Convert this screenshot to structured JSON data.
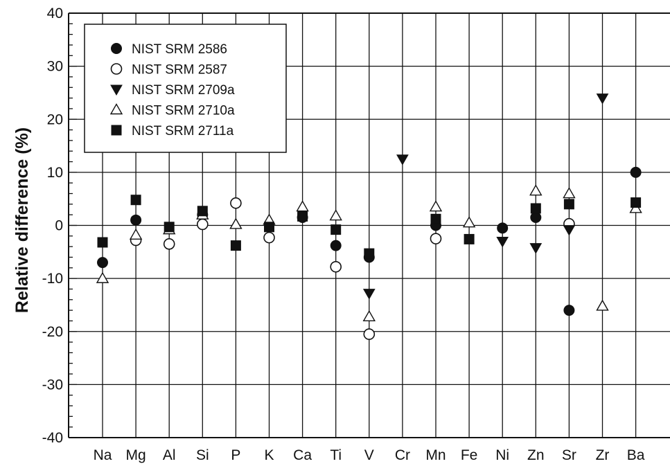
{
  "chart_data": {
    "type": "scatter",
    "title": "",
    "xlabel": "",
    "ylabel": "Relative difference (%)",
    "ylim": [
      -40,
      40
    ],
    "yticks": [
      -40,
      -30,
      -20,
      -10,
      0,
      10,
      20,
      30,
      40
    ],
    "ytick_labels": [
      "-40",
      "-30",
      "-20",
      "-10",
      "0",
      "10",
      "20",
      "30",
      "40"
    ],
    "categories": [
      "Na",
      "Mg",
      "Al",
      "Si",
      "P",
      "K",
      "Ca",
      "Ti",
      "V",
      "Cr",
      "Mn",
      "Fe",
      "Ni",
      "Zn",
      "Sr",
      "Zr",
      "Ba"
    ],
    "grid": true,
    "legend_position": "top-left",
    "series": [
      {
        "name": "NIST SRM 2586",
        "marker": "filled-circle",
        "values": [
          -7,
          1,
          null,
          2,
          null,
          null,
          1.5,
          -3.8,
          -6,
          null,
          0,
          null,
          -0.5,
          1.5,
          -16,
          null,
          10
        ]
      },
      {
        "name": "NIST SRM 2587",
        "marker": "open-circle",
        "values": [
          null,
          -2.8,
          -3.5,
          0.2,
          4.2,
          -2.3,
          null,
          -7.8,
          -20.5,
          null,
          -2.5,
          null,
          null,
          null,
          0.3,
          null,
          null
        ]
      },
      {
        "name": "NIST SRM 2709a",
        "marker": "filled-triangle-down",
        "values": [
          null,
          null,
          null,
          null,
          null,
          null,
          null,
          null,
          -12.8,
          12.5,
          null,
          null,
          -3,
          -4.2,
          -0.8,
          24,
          null
        ]
      },
      {
        "name": "NIST SRM 2710a",
        "marker": "open-triangle-up",
        "values": [
          -10,
          -1.8,
          -0.8,
          2,
          0.2,
          1,
          3.5,
          1.8,
          -17.2,
          null,
          3.5,
          0.5,
          null,
          6.5,
          6,
          -15.2,
          3.2
        ]
      },
      {
        "name": "NIST SRM 2711a",
        "marker": "filled-square",
        "values": [
          -3.2,
          4.8,
          -0.3,
          2.7,
          -3.8,
          -0.3,
          1.7,
          -0.8,
          -5.3,
          null,
          1.2,
          -2.6,
          null,
          3.2,
          4,
          null,
          4.3
        ]
      }
    ]
  }
}
